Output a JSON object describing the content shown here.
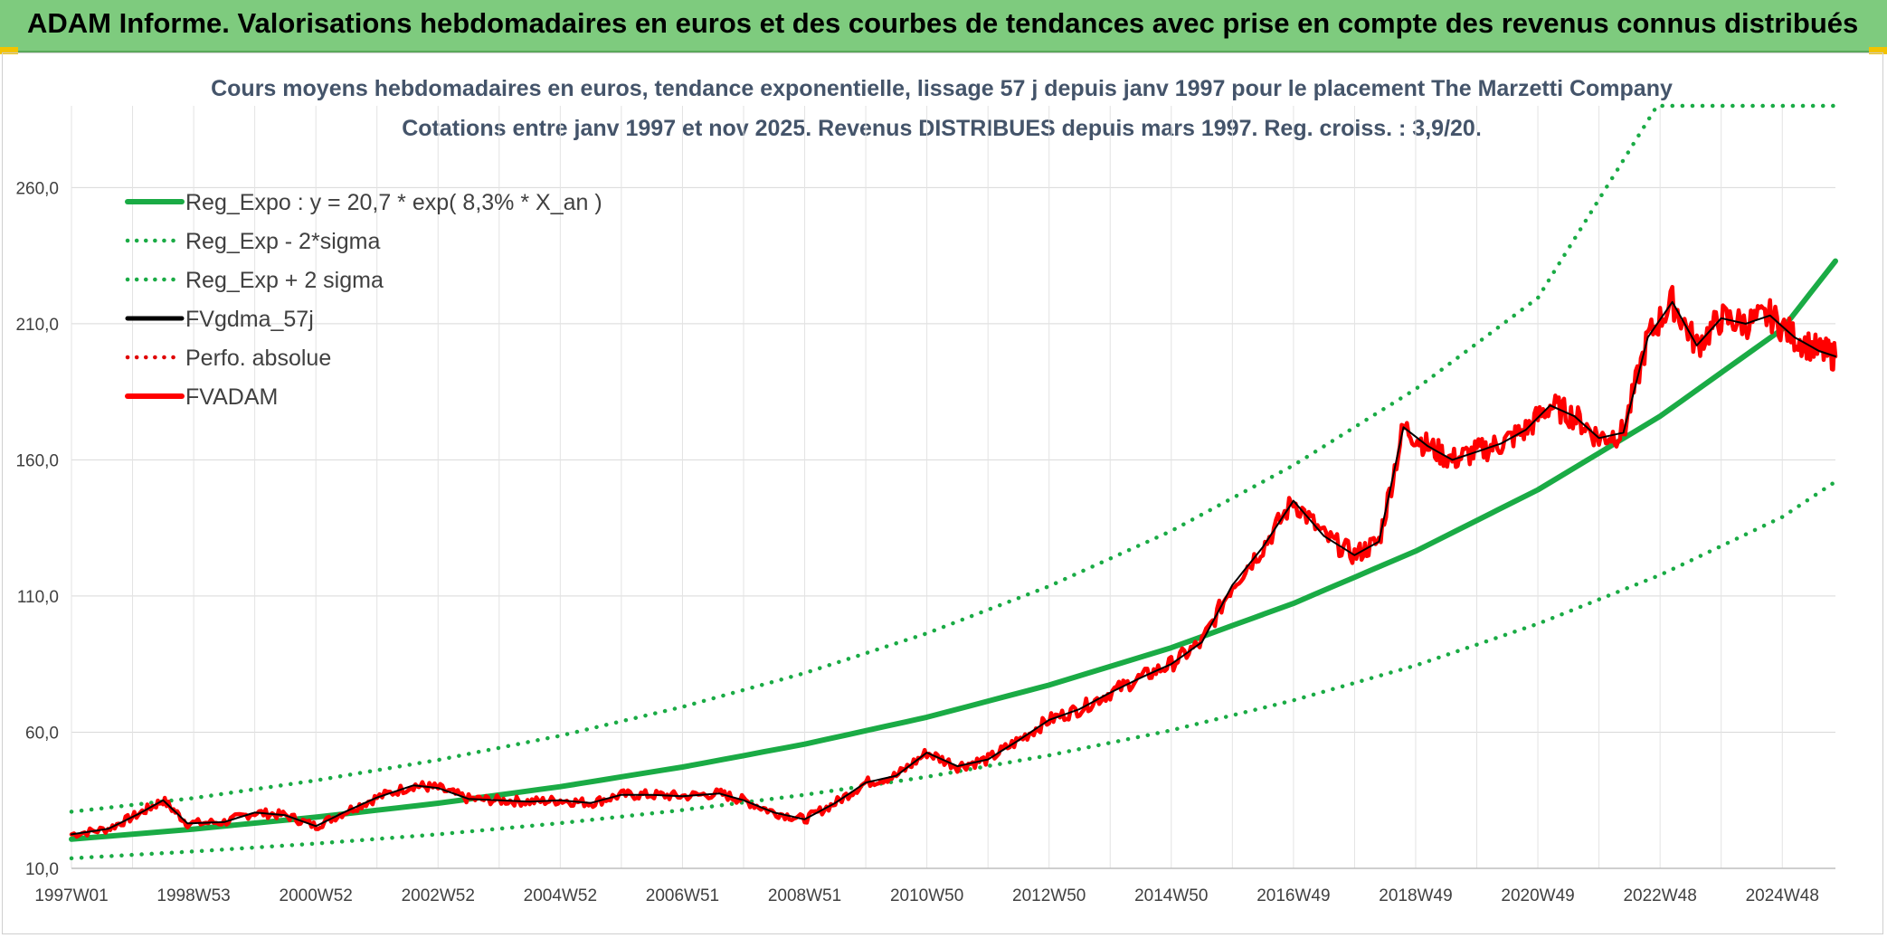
{
  "banner": {
    "title": "ADAM Informe. Valorisations hebdomadaires en euros et des courbes de tendances avec prise en compte des revenus connus distribués"
  },
  "chart_data": {
    "type": "line",
    "title_line1": "Cours moyens hebdomadaires en euros, tendance exponentielle, lissage 57 j depuis janv 1997 pour le placement The Marzetti Company",
    "title_line2": "Cotations entre janv 1997 et nov 2025. Revenus DISTRIBUES depuis mars 1997. Reg. croiss. : 3,9/20.",
    "x_range": [
      1997.0,
      2025.87
    ],
    "ylim": [
      10,
      290
    ],
    "y_ticks": [
      {
        "value": 10,
        "label": "10,0"
      },
      {
        "value": 60,
        "label": "60,0"
      },
      {
        "value": 110,
        "label": "110,0"
      },
      {
        "value": 160,
        "label": "160,0"
      },
      {
        "value": 210,
        "label": "210,0"
      },
      {
        "value": 260,
        "label": "260,0"
      }
    ],
    "x_ticks": [
      {
        "x": 1997.0,
        "label": "1997W01"
      },
      {
        "x": 1999.0,
        "label": "1998W53"
      },
      {
        "x": 2001.0,
        "label": "2000W52"
      },
      {
        "x": 2003.0,
        "label": "2002W52"
      },
      {
        "x": 2005.0,
        "label": "2004W52"
      },
      {
        "x": 2007.0,
        "label": "2006W51"
      },
      {
        "x": 2009.0,
        "label": "2008W51"
      },
      {
        "x": 2011.0,
        "label": "2010W50"
      },
      {
        "x": 2013.0,
        "label": "2012W50"
      },
      {
        "x": 2015.0,
        "label": "2014W50"
      },
      {
        "x": 2017.0,
        "label": "2016W49"
      },
      {
        "x": 2019.0,
        "label": "2018W49"
      },
      {
        "x": 2021.0,
        "label": "2020W49"
      },
      {
        "x": 2023.0,
        "label": "2022W48"
      },
      {
        "x": 2025.0,
        "label": "2024W48"
      }
    ],
    "x_gridlines": [
      1997,
      1998,
      1999,
      2000,
      2001,
      2002,
      2003,
      2004,
      2005,
      2006,
      2007,
      2008,
      2009,
      2010,
      2011,
      2012,
      2013,
      2014,
      2015,
      2016,
      2017,
      2018,
      2019,
      2020,
      2021,
      2022,
      2023,
      2024,
      2025
    ],
    "legend": [
      {
        "key": "reg_expo",
        "label": "Reg_Expo : y = 20,7 * exp( 8,3% *  X_an )",
        "color": "#1aab45",
        "style": "solid-thick"
      },
      {
        "key": "reg_minus",
        "label": "Reg_Exp - 2*sigma",
        "color": "#1aab45",
        "style": "dotted"
      },
      {
        "key": "reg_plus",
        "label": "Reg_Exp + 2 sigma",
        "color": "#1aab45",
        "style": "dotted"
      },
      {
        "key": "fvgdma",
        "label": "FVgdma_57j",
        "color": "#000000",
        "style": "solid"
      },
      {
        "key": "perfo",
        "label": "Perfo. absolue",
        "color": "#e00000",
        "style": "dotted"
      },
      {
        "key": "fvadam",
        "label": "FVADAM",
        "color": "#ff0000",
        "style": "solid-thick"
      }
    ],
    "series": {
      "reg_expo": {
        "x": [
          1997,
          1999,
          2001,
          2003,
          2005,
          2007,
          2009,
          2011,
          2013,
          2015,
          2017,
          2019,
          2021,
          2023,
          2025,
          2025.87
        ],
        "y": [
          20.7,
          24.4,
          28.8,
          33.9,
          40.0,
          47.2,
          55.6,
          65.5,
          77.3,
          91.0,
          107.3,
          126.5,
          149.0,
          176.0,
          208.0,
          233.0
        ]
      },
      "reg_minus": {
        "x": [
          1997,
          1999,
          2001,
          2003,
          2005,
          2007,
          2009,
          2011,
          2013,
          2015,
          2017,
          2019,
          2021,
          2023,
          2025,
          2025.87
        ],
        "y": [
          13.7,
          16.2,
          19.1,
          22.5,
          26.6,
          31.4,
          37.0,
          43.6,
          51.5,
          60.7,
          71.7,
          84.5,
          99.8,
          117.7,
          139.0,
          152.0
        ]
      },
      "reg_plus": {
        "x": [
          1997,
          1999,
          2001,
          2003,
          2005,
          2007,
          2009,
          2011,
          2013,
          2015,
          2017,
          2019,
          2021,
          2022.95,
          2025.87
        ],
        "y": [
          30.8,
          35.8,
          42.3,
          49.8,
          58.7,
          69.3,
          81.7,
          96.3,
          113.6,
          133.9,
          158.0,
          186.0,
          219.5,
          290.0,
          290.0
        ]
      },
      "fvgdma": {
        "x": [
          1997.0,
          1997.6,
          1998.1,
          1998.5,
          1998.9,
          1999.5,
          2000.0,
          2000.5,
          2001.0,
          2001.5,
          2002.0,
          2002.6,
          2003.0,
          2003.5,
          2004.0,
          2004.5,
          2005.0,
          2005.5,
          2006.0,
          2006.5,
          2007.0,
          2007.6,
          2008.0,
          2008.5,
          2009.0,
          2009.5,
          2010.0,
          2010.5,
          2011.0,
          2011.5,
          2012.0,
          2012.5,
          2013.0,
          2013.5,
          2014.0,
          2014.5,
          2015.0,
          2015.5,
          2016.0,
          2016.5,
          2017.0,
          2017.5,
          2018.0,
          2018.4,
          2018.8,
          2019.2,
          2019.6,
          2020.0,
          2020.4,
          2020.8,
          2021.2,
          2021.6,
          2022.0,
          2022.4,
          2022.8,
          2023.2,
          2023.6,
          2024.0,
          2024.4,
          2024.8,
          2025.2,
          2025.6,
          2025.87
        ],
        "y": [
          22.5,
          24.5,
          30.0,
          35.0,
          26.5,
          27.0,
          30.5,
          29.5,
          25.5,
          31.0,
          36.0,
          40.5,
          39.5,
          35.5,
          35.0,
          34.5,
          35.0,
          34.0,
          37.0,
          37.0,
          36.5,
          37.5,
          35.0,
          30.5,
          28.0,
          34.0,
          41.5,
          44.0,
          52.5,
          47.5,
          50.0,
          57.0,
          64.5,
          68.5,
          74.5,
          80.0,
          85.0,
          93.0,
          114.0,
          128.0,
          145.0,
          132.0,
          125.0,
          130.0,
          172.0,
          165.0,
          160.0,
          163.0,
          166.0,
          171.0,
          180.0,
          176.0,
          168.0,
          170.0,
          205.0,
          218.0,
          202.0,
          212.0,
          210.0,
          213.0,
          205.0,
          200.0,
          198.0
        ]
      },
      "fvadam": {
        "x": [
          1997.0,
          1997.6,
          1998.1,
          1998.5,
          1998.9,
          1999.5,
          2000.0,
          2000.5,
          2001.0,
          2001.5,
          2002.0,
          2002.6,
          2003.0,
          2003.5,
          2004.0,
          2004.5,
          2005.0,
          2005.5,
          2006.0,
          2006.5,
          2007.0,
          2007.6,
          2008.0,
          2008.5,
          2009.0,
          2009.5,
          2010.0,
          2010.5,
          2011.0,
          2011.5,
          2012.0,
          2012.5,
          2013.0,
          2013.5,
          2014.0,
          2014.5,
          2015.0,
          2015.5,
          2016.0,
          2016.5,
          2017.0,
          2017.5,
          2018.0,
          2018.4,
          2018.8,
          2019.2,
          2019.6,
          2020.0,
          2020.4,
          2020.8,
          2021.2,
          2021.6,
          2022.0,
          2022.4,
          2022.8,
          2023.2,
          2023.6,
          2024.0,
          2024.4,
          2024.8,
          2025.2,
          2025.6,
          2025.87
        ],
        "y": [
          22.5,
          24.5,
          30.0,
          35.0,
          26.5,
          27.0,
          30.5,
          29.5,
          25.5,
          31.0,
          36.0,
          40.5,
          39.5,
          35.5,
          35.0,
          34.5,
          35.0,
          34.0,
          37.0,
          37.0,
          36.5,
          37.5,
          35.0,
          30.5,
          28.0,
          34.0,
          41.5,
          44.0,
          52.5,
          47.5,
          50.0,
          57.0,
          64.5,
          68.5,
          74.5,
          80.0,
          85.0,
          93.0,
          114.0,
          128.0,
          145.0,
          132.0,
          125.0,
          130.0,
          172.0,
          165.0,
          160.0,
          163.0,
          166.0,
          171.0,
          180.0,
          176.0,
          168.0,
          170.0,
          205.0,
          218.0,
          202.0,
          212.0,
          210.0,
          213.0,
          205.0,
          200.0,
          198.0
        ]
      }
    }
  }
}
